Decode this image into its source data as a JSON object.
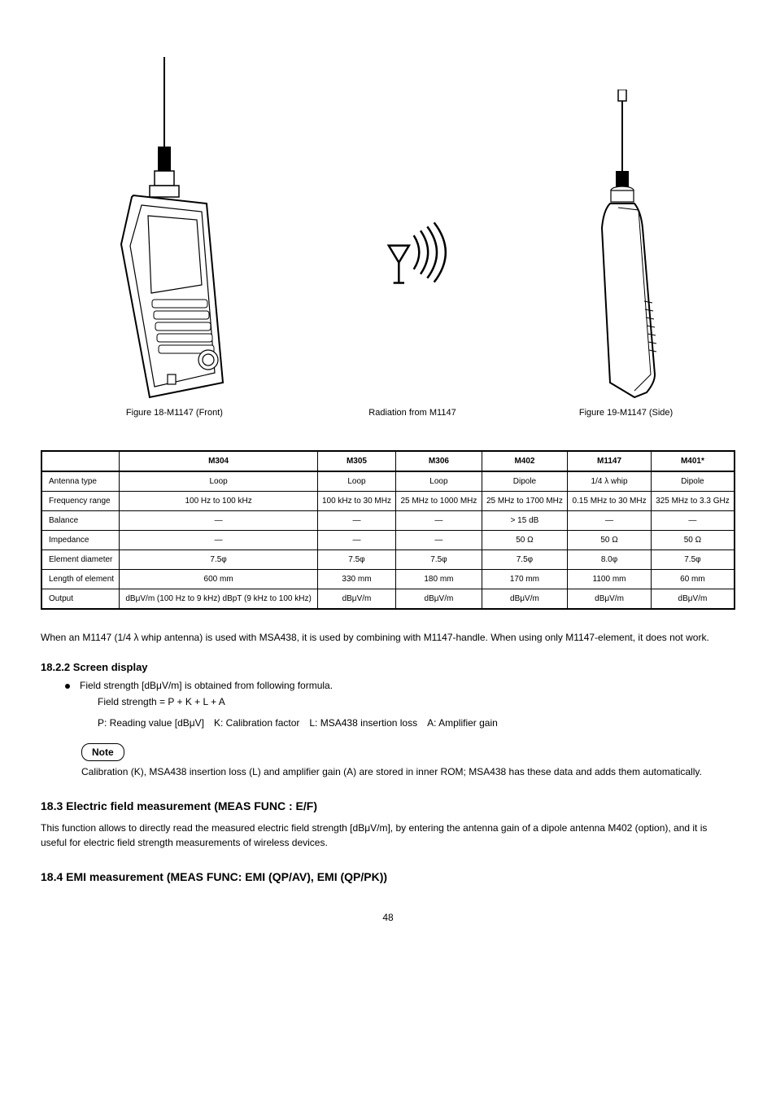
{
  "figure_labels": {
    "fig1": "Figure 18-M1147 (Front)",
    "fig2": "Radiation from M1147",
    "fig3": "Figure 19-M1147 (Side)"
  },
  "table": {
    "columns": [
      "",
      "M304",
      "M305",
      "M306",
      "M402",
      "M1147",
      "M401*"
    ],
    "rows": [
      [
        "Antenna type",
        "Loop",
        "Loop",
        "Loop",
        "Dipole",
        "1/4 λ whip",
        "Dipole"
      ],
      [
        "Frequency range",
        "100 Hz to 100 kHz",
        "100 kHz to 30 MHz",
        "25 MHz to 1000 MHz",
        "25 MHz to 1700 MHz",
        "0.15 MHz to 30 MHz",
        "325 MHz to 3.3 GHz"
      ],
      [
        "Balance",
        "—",
        "—",
        "—",
        "> 15 dB",
        "—",
        "—"
      ],
      [
        "Impedance",
        "—",
        "—",
        "—",
        "50 Ω",
        "50 Ω",
        "50 Ω"
      ],
      [
        "Element diameter",
        "7.5φ",
        "7.5φ",
        "7.5φ",
        "7.5φ",
        "8.0φ",
        "7.5φ"
      ],
      [
        "Length of element",
        "600 mm",
        "330 mm",
        "180 mm",
        "170 mm",
        "1100 mm",
        "60 mm"
      ],
      [
        "Output",
        "dBμV/m (100 Hz to 9 kHz) dBpT (9 kHz to 100 kHz)",
        "dBμV/m",
        "dBμV/m",
        "dBμV/m",
        "dBμV/m",
        "dBμV/m"
      ]
    ]
  },
  "text": {
    "para_using_m1147": "When an M1147 (1/4 λ whip antenna) is used with MSA438, it is used by combining with M1147-handle. When using only M1147-element, it does not work.",
    "h4": "18.2.2 Screen display",
    "bullet1": "Field strength [dBμV/m] is obtained from following formula.",
    "formula": "Field strength = P + K + L + A",
    "formula_legend": "P: Reading value [dBμV] K: Calibration factor L: MSA438 insertion loss A: Amplifier gain",
    "note_label": "Note",
    "note_text": "Calibration (K), MSA438 insertion loss (L) and amplifier gain (A) are stored in inner ROM; MSA438 has these data and adds them automatically.",
    "h3_efm": "18.3 Electric field measurement (MEAS FUNC : E/F)",
    "para_efm": "This function allows to directly read the measured electric field strength [dBμV/m], by entering the antenna gain of a dipole antenna M402 (option), and it is useful for electric field strength measurements of wireless devices.",
    "h3_emi": "18.4 EMI measurement (MEAS FUNC: EMI (QP/AV), EMI (QP/PK))",
    "page": "48"
  }
}
